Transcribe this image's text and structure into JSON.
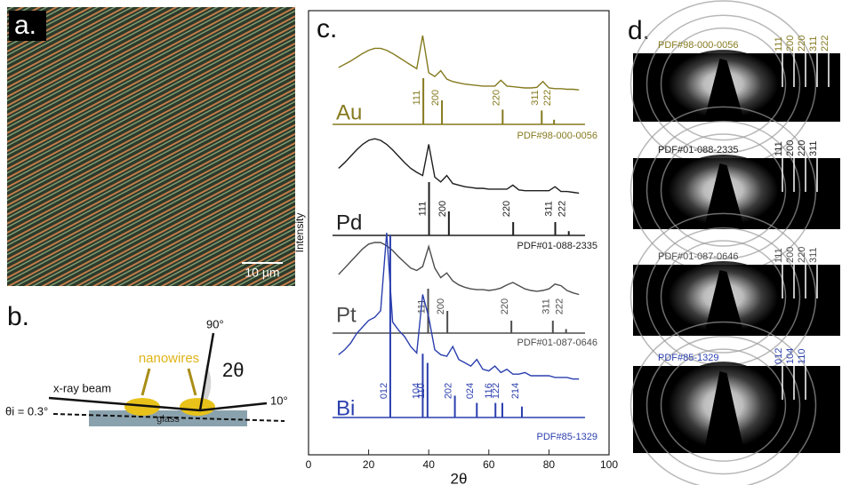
{
  "panel_a": {
    "label": "a.",
    "scale_bar": "10 µm"
  },
  "panel_b": {
    "label": "b.",
    "nanowires": "nanowires",
    "beam": "x-ray beam",
    "angle_90": "90°",
    "two_theta": "2θ",
    "angle_10": "10°",
    "incidence": "θi = 0.3°",
    "substrate": "glass"
  },
  "chart_data": {
    "type": "line",
    "label": "c.",
    "x_label": "2θ",
    "y_label": "Intensity",
    "xlim": [
      0,
      100
    ],
    "xticks": [
      0,
      20,
      40,
      60,
      80,
      100
    ],
    "x": [
      10,
      12,
      14,
      16,
      18,
      20,
      22,
      24,
      26,
      28,
      30,
      32,
      34,
      36,
      38,
      40,
      42,
      44,
      46,
      48,
      50,
      52,
      54,
      56,
      58,
      60,
      62,
      64,
      66,
      68,
      70,
      72,
      74,
      76,
      78,
      80,
      82,
      84,
      86,
      88,
      90
    ],
    "series": [
      {
        "name": "Au",
        "color": "#857a1f",
        "reference": "PDF#98-000-0056",
        "values": [
          50,
          55,
          60,
          66,
          72,
          77,
          80,
          80,
          77,
          72,
          66,
          60,
          54,
          48,
          100,
          42,
          36,
          45,
          32,
          28,
          26,
          24,
          23,
          22,
          21,
          21,
          21,
          30,
          21,
          20,
          19,
          18,
          18,
          19,
          28,
          18,
          17,
          17,
          16,
          16,
          15
        ],
        "peaks": {
          "positions": [
            38.2,
            44.4,
            64.6,
            77.6,
            81.7
          ],
          "heights": [
            100,
            52,
            32,
            30,
            10
          ],
          "labels": [
            "111",
            "200",
            "220",
            "311",
            "222"
          ]
        }
      },
      {
        "name": "Pd",
        "color": "#1e1e1e",
        "reference": "PDF#01-088-2335",
        "values": [
          45,
          52,
          60,
          68,
          75,
          80,
          82,
          80,
          75,
          68,
          60,
          52,
          45,
          40,
          36,
          75,
          34,
          28,
          36,
          26,
          24,
          22,
          21,
          20,
          20,
          19,
          19,
          19,
          19,
          24,
          18,
          17,
          17,
          17,
          17,
          17,
          22,
          16,
          16,
          15,
          14
        ],
        "peaks": {
          "positions": [
            40.1,
            46.7,
            68.1,
            82.1,
            86.6
          ],
          "heights": [
            100,
            45,
            25,
            25,
            8
          ],
          "labels": [
            "111",
            "200",
            "220",
            "311",
            "222"
          ]
        }
      },
      {
        "name": "Pt",
        "color": "#4d4d4d",
        "reference": "PDF#01-087-0646",
        "values": [
          40,
          48,
          56,
          64,
          72,
          78,
          80,
          80,
          76,
          70,
          62,
          55,
          48,
          45,
          50,
          75,
          48,
          36,
          42,
          32,
          27,
          24,
          22,
          21,
          21,
          20,
          21,
          23,
          27,
          30,
          26,
          22,
          20,
          19,
          20,
          22,
          28,
          26,
          20,
          17,
          15
        ],
        "peaks": {
          "positions": [
            39.8,
            46.2,
            67.5,
            81.3,
            85.7
          ],
          "heights": [
            100,
            50,
            28,
            28,
            9
          ],
          "labels": [
            "111",
            "200",
            "220",
            "311",
            "222"
          ]
        }
      },
      {
        "name": "Bi",
        "color": "#2b3fae",
        "reference": "PDF#85-1329",
        "values": [
          25,
          28,
          32,
          38,
          42,
          46,
          48,
          52,
          100,
          45,
          40,
          36,
          30,
          26,
          62,
          48,
          28,
          25,
          24,
          30,
          22,
          20,
          18,
          22,
          16,
          15,
          18,
          14,
          16,
          13,
          13,
          14,
          12,
          12,
          12,
          12,
          11,
          11,
          11,
          10,
          10
        ],
        "peaks": {
          "positions": [
            27.2,
            38.0,
            39.6,
            48.7,
            56.0,
            62.2,
            64.5,
            71.0
          ],
          "heights": [
            100,
            35,
            30,
            12,
            8,
            8,
            8,
            6
          ],
          "labels": [
            "012",
            "104",
            "110",
            "202",
            "024",
            "116",
            "122",
            "214"
          ]
        }
      }
    ]
  },
  "panel_d": {
    "label": "d.",
    "patterns": [
      {
        "reference": "PDF#98-000-0056",
        "color": "#857a1f",
        "rings": [
          "111",
          "200",
          "220",
          "311",
          "222"
        ]
      },
      {
        "reference": "PDF#01-088-2335",
        "color": "#1e1e1e",
        "rings": [
          "111",
          "200",
          "220",
          "311"
        ]
      },
      {
        "reference": "PDF#01-087-0646",
        "color": "#4d4d4d",
        "rings": [
          "111",
          "200",
          "220",
          "311"
        ]
      },
      {
        "reference": "PDF#85-1329",
        "color": "#2b3fae",
        "rings": [
          "012",
          "104",
          "110"
        ]
      }
    ]
  }
}
